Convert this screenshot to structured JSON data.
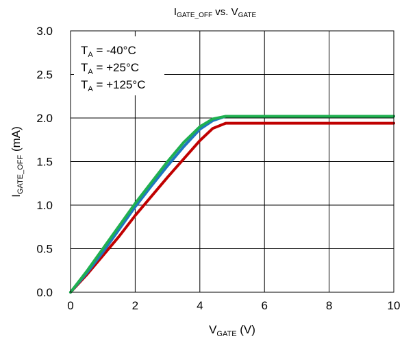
{
  "chart_data": {
    "type": "line",
    "title": {
      "main": "I",
      "sub": "GATE_OFF",
      "suffix": " vs. V",
      "sub2": "GATE"
    },
    "xlabel": {
      "main": "V",
      "sub": "GATE",
      "suffix": " (V)"
    },
    "ylabel": {
      "main": "I",
      "sub": "GATE_OFF",
      "suffix": " (mA)"
    },
    "xlim": [
      0,
      10
    ],
    "ylim": [
      0,
      3
    ],
    "xticks": [
      0,
      2,
      4,
      6,
      8,
      10
    ],
    "yticks": [
      0,
      0.5,
      1,
      1.5,
      2,
      2.5,
      3
    ],
    "xtick_labels": [
      "0",
      "2",
      "4",
      "6",
      "8",
      "10"
    ],
    "ytick_labels": [
      "0.0",
      "0.5",
      "1.0",
      "1.5",
      "2.0",
      "2.5",
      "3.0"
    ],
    "grid": true,
    "legend_position": "top-left",
    "series": [
      {
        "name": "T_A = -40°C",
        "legend": {
          "main": "T",
          "sub": "A",
          "suffix": " = -40°C"
        },
        "color": "#c00000",
        "x": [
          0,
          0.5,
          1,
          1.5,
          2,
          2.5,
          3,
          3.5,
          4,
          4.4,
          4.8,
          5,
          6,
          8,
          10
        ],
        "y": [
          0,
          0.2,
          0.42,
          0.64,
          0.88,
          1.1,
          1.32,
          1.53,
          1.74,
          1.88,
          1.94,
          1.94,
          1.94,
          1.94,
          1.94
        ]
      },
      {
        "name": "T_A = +25°C",
        "legend": {
          "main": "T",
          "sub": "A",
          "suffix": " = +25°C"
        },
        "color": "#1f77c0",
        "x": [
          0,
          0.5,
          1,
          1.5,
          2,
          2.5,
          3,
          3.5,
          4,
          4.4,
          4.8,
          5,
          6,
          8,
          10
        ],
        "y": [
          0,
          0.22,
          0.46,
          0.72,
          0.98,
          1.22,
          1.45,
          1.67,
          1.87,
          1.97,
          2.02,
          2.02,
          2.02,
          2.02,
          2.02
        ]
      },
      {
        "name": "T_A = +125°C",
        "legend": {
          "main": "T",
          "sub": "A",
          "suffix": " = +125°C"
        },
        "color": "#1fb050",
        "x": [
          0,
          0.5,
          1,
          1.5,
          2,
          2.5,
          3,
          3.5,
          4,
          4.4,
          4.8,
          5,
          6,
          8,
          10
        ],
        "y": [
          0,
          0.24,
          0.5,
          0.76,
          1.02,
          1.26,
          1.5,
          1.72,
          1.9,
          1.99,
          2.02,
          2.02,
          2.02,
          2.02,
          2.02
        ]
      }
    ]
  }
}
